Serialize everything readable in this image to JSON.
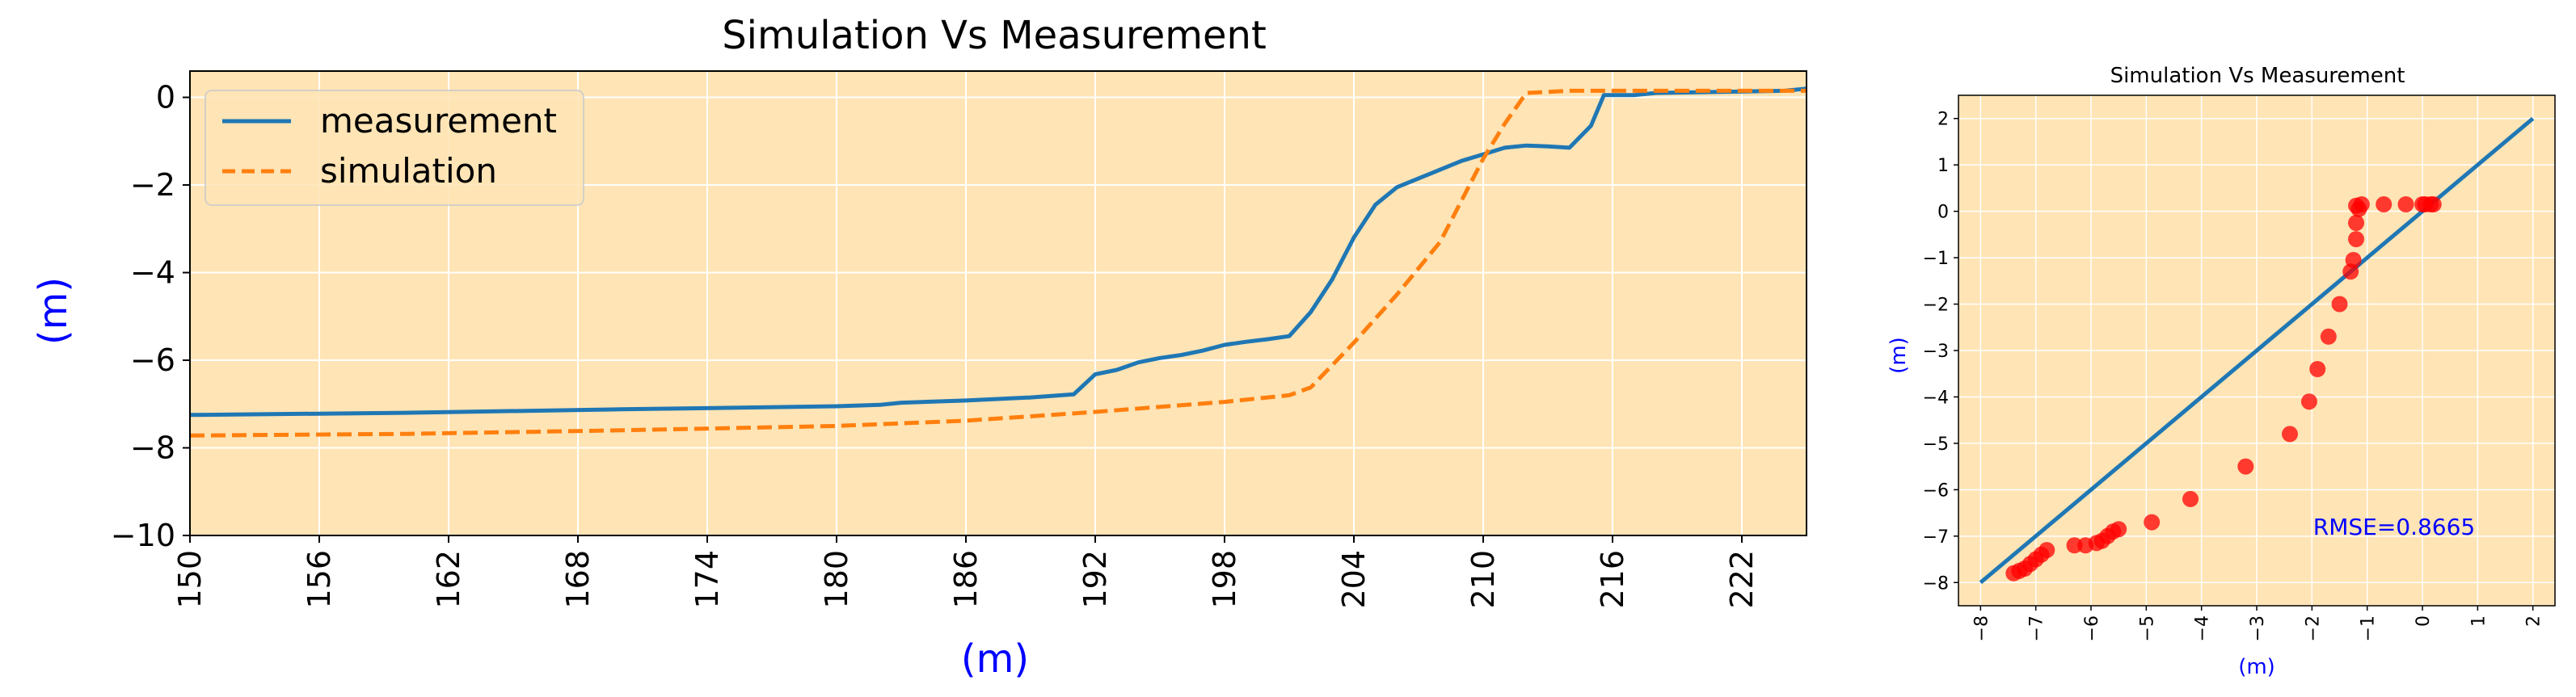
{
  "chart_data": [
    {
      "type": "line",
      "title": "Simulation Vs Measurement",
      "xlabel": "(m)",
      "ylabel": "(m)",
      "xlim": [
        150,
        225
      ],
      "ylim": [
        -10,
        0.6
      ],
      "xticks": [
        150,
        156,
        162,
        168,
        174,
        180,
        186,
        192,
        198,
        204,
        210,
        216,
        222
      ],
      "yticks": [
        0,
        -2,
        -4,
        -6,
        -8,
        -10
      ],
      "grid": true,
      "background": "#ffe4b5",
      "legend": "upper-left",
      "series": [
        {
          "name": "measurement",
          "color": "#1f77b4",
          "style": "solid",
          "points": [
            [
              150,
              -7.25
            ],
            [
              160,
              -7.2
            ],
            [
              170,
              -7.12
            ],
            [
              180,
              -7.05
            ],
            [
              182,
              -7.02
            ],
            [
              183,
              -6.97
            ],
            [
              186,
              -6.92
            ],
            [
              189,
              -6.85
            ],
            [
              191,
              -6.78
            ],
            [
              192,
              -6.32
            ],
            [
              193,
              -6.22
            ],
            [
              194,
              -6.05
            ],
            [
              195,
              -5.95
            ],
            [
              196,
              -5.88
            ],
            [
              197,
              -5.78
            ],
            [
              198,
              -5.65
            ],
            [
              199,
              -5.58
            ],
            [
              200,
              -5.52
            ],
            [
              201,
              -5.45
            ],
            [
              202,
              -4.9
            ],
            [
              203,
              -4.15
            ],
            [
              204,
              -3.2
            ],
            [
              205,
              -2.45
            ],
            [
              206,
              -2.05
            ],
            [
              207,
              -1.85
            ],
            [
              208,
              -1.65
            ],
            [
              209,
              -1.45
            ],
            [
              210,
              -1.3
            ],
            [
              211,
              -1.15
            ],
            [
              212,
              -1.1
            ],
            [
              213,
              -1.12
            ],
            [
              214,
              -1.15
            ],
            [
              215,
              -0.65
            ],
            [
              215.6,
              0.05
            ],
            [
              217,
              0.05
            ],
            [
              218,
              0.1
            ],
            [
              224,
              0.15
            ],
            [
              225,
              0.2
            ]
          ]
        },
        {
          "name": "simulation",
          "color": "#ff7f0e",
          "style": "dashed",
          "points": [
            [
              150,
              -7.72
            ],
            [
              160,
              -7.68
            ],
            [
              170,
              -7.6
            ],
            [
              180,
              -7.5
            ],
            [
              186,
              -7.38
            ],
            [
              192,
              -7.18
            ],
            [
              198,
              -6.95
            ],
            [
              200,
              -6.85
            ],
            [
              201,
              -6.8
            ],
            [
              202,
              -6.62
            ],
            [
              204,
              -5.6
            ],
            [
              206,
              -4.5
            ],
            [
              208,
              -3.3
            ],
            [
              210,
              -1.4
            ],
            [
              211,
              -0.6
            ],
            [
              212,
              0.1
            ],
            [
              214,
              0.15
            ],
            [
              216,
              0.15
            ],
            [
              220,
              0.15
            ],
            [
              225,
              0.15
            ]
          ]
        }
      ]
    },
    {
      "type": "scatter",
      "title": "Simulation Vs Measurement",
      "xlabel": "(m)",
      "ylabel": "(m)",
      "xlim": [
        -8.4,
        2.4
      ],
      "ylim": [
        -8.5,
        2.5
      ],
      "xticks": [
        -8,
        -7,
        -6,
        -5,
        -4,
        -3,
        -2,
        -1,
        0,
        1,
        2
      ],
      "yticks": [
        2,
        1,
        0,
        -1,
        -2,
        -3,
        -4,
        -5,
        -6,
        -7,
        -8
      ],
      "grid": true,
      "background": "#ffe4b5",
      "annotation": "RMSE=0.8665",
      "line": {
        "color": "#1f77b4",
        "points": [
          [
            -8,
            -8
          ],
          [
            2,
            2
          ]
        ]
      },
      "point_color": "#ff0000",
      "points": [
        [
          -7.4,
          -7.8
        ],
        [
          -7.3,
          -7.75
        ],
        [
          -7.2,
          -7.7
        ],
        [
          -7.1,
          -7.6
        ],
        [
          -7.0,
          -7.5
        ],
        [
          -6.9,
          -7.4
        ],
        [
          -6.8,
          -7.3
        ],
        [
          -6.3,
          -7.2
        ],
        [
          -6.1,
          -7.2
        ],
        [
          -5.9,
          -7.15
        ],
        [
          -5.8,
          -7.1
        ],
        [
          -5.7,
          -7.0
        ],
        [
          -5.6,
          -6.9
        ],
        [
          -5.5,
          -6.85
        ],
        [
          -4.9,
          -6.7
        ],
        [
          -4.2,
          -6.2
        ],
        [
          -3.2,
          -5.5
        ],
        [
          -2.4,
          -4.8
        ],
        [
          -2.05,
          -4.1
        ],
        [
          -1.9,
          -3.4
        ],
        [
          -1.7,
          -2.7
        ],
        [
          -1.5,
          -2.0
        ],
        [
          -1.3,
          -1.3
        ],
        [
          -1.25,
          -1.05
        ],
        [
          -1.2,
          -0.6
        ],
        [
          -1.2,
          -0.25
        ],
        [
          -1.15,
          0.05
        ],
        [
          -1.2,
          0.12
        ],
        [
          -1.1,
          0.15
        ],
        [
          -0.7,
          0.15
        ],
        [
          -0.3,
          0.15
        ],
        [
          0.0,
          0.15
        ],
        [
          0.05,
          0.15
        ],
        [
          0.15,
          0.15
        ],
        [
          0.2,
          0.15
        ]
      ]
    }
  ]
}
